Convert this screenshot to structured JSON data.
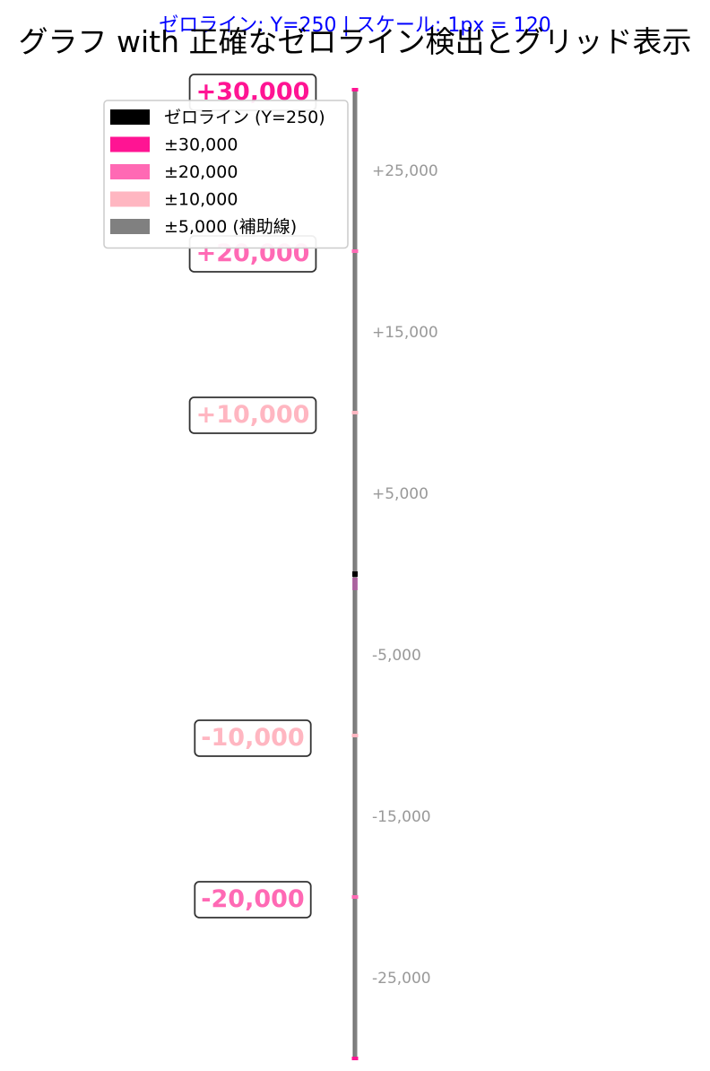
{
  "chart_data": {
    "type": "line",
    "title": "グラフ with 正確なゼロライン検出とグリッド表示",
    "subtitle": "ゼロライン: Y=250 | スケール: 1px = 120",
    "ylim": [
      -30000,
      30000
    ],
    "grid": true,
    "zero_line": 0,
    "tick_labels": [
      {
        "value": 25000,
        "label": "+25,000"
      },
      {
        "value": 15000,
        "label": "+15,000"
      },
      {
        "value": 5000,
        "label": "+5,000"
      },
      {
        "value": -5000,
        "label": "-5,000"
      },
      {
        "value": -15000,
        "label": "-15,000"
      },
      {
        "value": -25000,
        "label": "-25,000"
      }
    ],
    "level_labels": [
      {
        "value": 30000,
        "label": "+30,000",
        "color": "#ff1493"
      },
      {
        "value": 20000,
        "label": "+20,000",
        "color": "#ff69b4"
      },
      {
        "value": 10000,
        "label": "+10,000",
        "color": "#ffb6c1"
      },
      {
        "value": -10000,
        "label": "-10,000",
        "color": "#ffb6c1"
      },
      {
        "value": -20000,
        "label": "-20,000",
        "color": "#ff69b4"
      }
    ],
    "grid_levels": [
      {
        "value": 30000,
        "color": "#ff1493"
      },
      {
        "value": -30000,
        "color": "#ff1493"
      },
      {
        "value": 20000,
        "color": "#ff69b4"
      },
      {
        "value": -20000,
        "color": "#ff69b4"
      },
      {
        "value": 10000,
        "color": "#ffb6c1"
      },
      {
        "value": -10000,
        "color": "#ffb6c1"
      }
    ],
    "legend": {
      "position": "top-left",
      "items": [
        {
          "label": "ゼロライン (Y=250)",
          "color": "#000000"
        },
        {
          "label": "±30,000",
          "color": "#ff1493"
        },
        {
          "label": "±20,000",
          "color": "#ff69b4"
        },
        {
          "label": "±10,000",
          "color": "#ffb6c1"
        },
        {
          "label": "±5,000 (補助線)",
          "color": "#808080"
        }
      ]
    },
    "colors": {
      "subtitle": "#0000ff",
      "tick_text": "#999999",
      "axis_gray": "#808080",
      "zero": "#000000"
    }
  }
}
